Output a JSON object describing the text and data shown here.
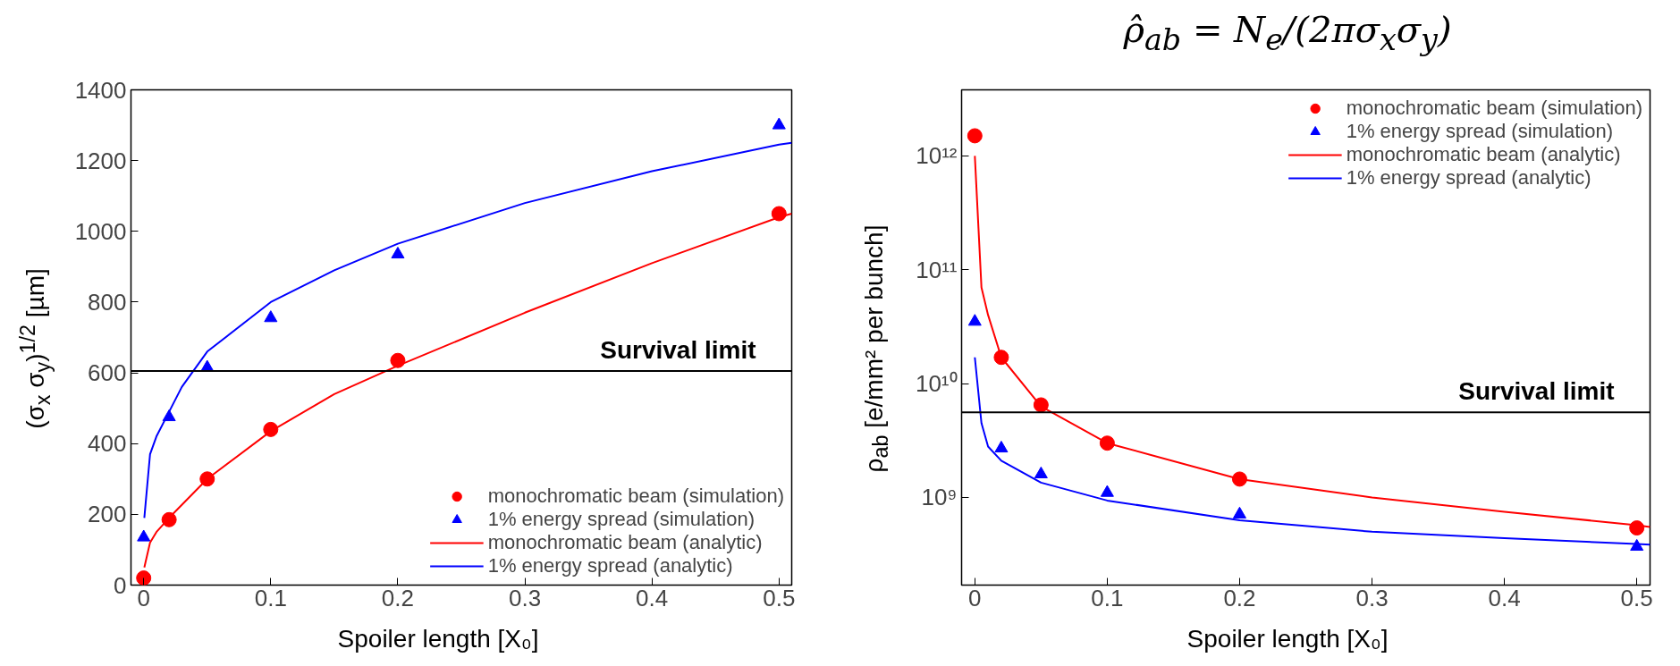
{
  "chart_data": [
    {
      "type": "scatter",
      "xlabel": "Spoiler length [X₀]",
      "ylabel": "(σ$_{x}$ σ$_{y}$)$^{1/2}$ [µm]",
      "xlim": [
        -0.01,
        0.51
      ],
      "xticks": [
        0,
        0.1,
        0.2,
        0.3,
        0.4,
        0.5
      ],
      "ylim": [
        0,
        1400
      ],
      "yticks": [
        0,
        200,
        400,
        600,
        800,
        1000,
        1200,
        1400
      ],
      "grid": false,
      "legend": "bottom right",
      "ref_lines": [
        {
          "axis": "y",
          "value": 605,
          "label": "Survival limit",
          "color": "#000000"
        }
      ],
      "series": [
        {
          "name": "monochromatic beam (simulation)",
          "marker": "circle",
          "color": "#ff0000",
          "x": [
            0,
            0.02,
            0.05,
            0.1,
            0.2,
            0.5
          ],
          "values": [
            20,
            185,
            300,
            440,
            635,
            1050
          ]
        },
        {
          "name": "1% energy spread (simulation)",
          "marker": "triangle",
          "color": "#0000ff",
          "x": [
            0,
            0.02,
            0.05,
            0.1,
            0.2,
            0.5
          ],
          "values": [
            135,
            475,
            615,
            755,
            935,
            1300
          ]
        },
        {
          "name": "monochromatic beam (analytic)",
          "type": "line",
          "line_style": "solid",
          "color": "#ff0000",
          "x": [
            0.0005,
            0.005,
            0.01,
            0.02,
            0.05,
            0.1,
            0.15,
            0.2,
            0.3,
            0.4,
            0.5,
            0.51
          ],
          "values": [
            50,
            120,
            150,
            190,
            300,
            435,
            540,
            620,
            770,
            910,
            1040,
            1050
          ]
        },
        {
          "name": "1% energy spread (analytic)",
          "type": "line",
          "line_style": "solid",
          "color": "#0000ff",
          "x": [
            0.0005,
            0.005,
            0.01,
            0.02,
            0.03,
            0.05,
            0.1,
            0.15,
            0.2,
            0.3,
            0.4,
            0.5,
            0.51
          ],
          "values": [
            190,
            370,
            420,
            490,
            560,
            660,
            800,
            890,
            965,
            1080,
            1170,
            1245,
            1250
          ]
        }
      ]
    },
    {
      "type": "scatter",
      "title": "ρ̂$_{ab}$ = N$_{e}$/(2πσ$_{x}$σ$_{y}$)",
      "xlabel": "Spoiler length [X₀]",
      "ylabel": "ρ$_{ab}$ [e/mm² per bunch]",
      "log": true,
      "xlim": [
        -0.01,
        0.51
      ],
      "xticks": [
        0,
        0.1,
        0.2,
        0.3,
        0.4,
        0.5
      ],
      "ylim": [
        170000000.0,
        3800000000000.0
      ],
      "yticks": [
        {
          "value": 1000000000.0,
          "label": "10⁹"
        },
        {
          "value": 10000000000.0,
          "label": "10¹⁰"
        },
        {
          "value": 100000000000.0,
          "label": "10¹¹"
        },
        {
          "value": 1000000000000.0,
          "label": "10¹²"
        }
      ],
      "grid": false,
      "legend": "top right",
      "ref_lines": [
        {
          "axis": "y",
          "value": 5600000000.0,
          "label": "Survival limit",
          "color": "#000000"
        }
      ],
      "series": [
        {
          "name": "monochromatic beam (simulation)",
          "marker": "circle",
          "color": "#ff0000",
          "x": [
            0,
            0.02,
            0.05,
            0.1,
            0.2,
            0.5
          ],
          "values": [
            1500000000000.0,
            17000000000.0,
            6500000000.0,
            3000000000.0,
            1450000000.0,
            540000000.0
          ]
        },
        {
          "name": "1% energy spread (simulation)",
          "marker": "triangle",
          "color": "#0000ff",
          "x": [
            0,
            0.02,
            0.05,
            0.1,
            0.2,
            0.5
          ],
          "values": [
            35000000000.0,
            2700000000.0,
            1600000000.0,
            1100000000.0,
            710000000.0,
            370000000.0
          ]
        },
        {
          "name": "monochromatic beam (analytic)",
          "type": "line",
          "line_style": "solid",
          "color": "#ff0000",
          "x": [
            0,
            0.005,
            0.01,
            0.02,
            0.05,
            0.1,
            0.2,
            0.3,
            0.4,
            0.5,
            0.51
          ],
          "values": [
            1000000000000.0,
            70000000000.0,
            40000000000.0,
            17000000000.0,
            6300000000.0,
            3000000000.0,
            1450000000.0,
            1000000000.0,
            750000000.0,
            570000000.0,
            550000000.0
          ]
        },
        {
          "name": "1% energy spread (analytic)",
          "type": "line",
          "line_style": "solid",
          "color": "#0000ff",
          "x": [
            0,
            0.005,
            0.01,
            0.02,
            0.05,
            0.1,
            0.2,
            0.3,
            0.4,
            0.5,
            0.51
          ],
          "values": [
            17000000000.0,
            4500000000.0,
            2800000000.0,
            2100000000.0,
            1350000000.0,
            940000000.0,
            630000000.0,
            500000000.0,
            440000000.0,
            390000000.0,
            385000000.0
          ]
        }
      ]
    }
  ]
}
